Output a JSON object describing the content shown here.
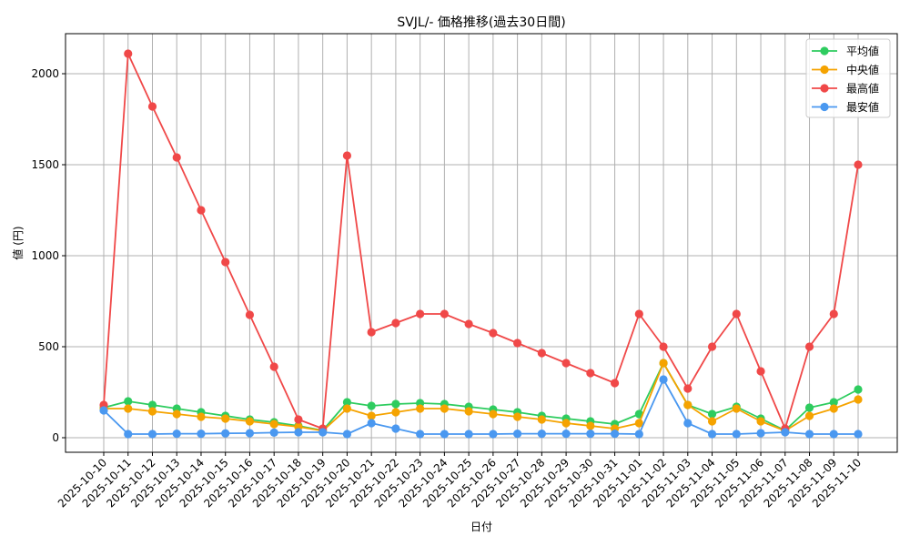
{
  "chart_data": {
    "type": "line",
    "title": "SVJL/- 価格推移(過去30日間)",
    "xlabel": "日付",
    "ylabel": "値 (円)",
    "categories": [
      "2025-10-10",
      "2025-10-11",
      "2025-10-12",
      "2025-10-13",
      "2025-10-14",
      "2025-10-15",
      "2025-10-16",
      "2025-10-17",
      "2025-10-18",
      "2025-10-19",
      "2025-10-20",
      "2025-10-21",
      "2025-10-22",
      "2025-10-23",
      "2025-10-24",
      "2025-10-25",
      "2025-10-26",
      "2025-10-27",
      "2025-10-28",
      "2025-10-29",
      "2025-10-30",
      "2025-10-31",
      "2025-11-01",
      "2025-11-02",
      "2025-11-03",
      "2025-11-04",
      "2025-11-05",
      "2025-11-06",
      "2025-11-07",
      "2025-11-08",
      "2025-11-09",
      "2025-11-10"
    ],
    "ylim": [
      -80,
      2220
    ],
    "yticks": [
      0,
      500,
      1000,
      1500,
      2000
    ],
    "grid": true,
    "legend_position": "top-right",
    "series": [
      {
        "name": "平均値",
        "color": "#2ecc5f",
        "values": [
          165,
          200,
          180,
          160,
          140,
          120,
          100,
          85,
          65,
          40,
          195,
          175,
          185,
          190,
          185,
          170,
          155,
          140,
          120,
          105,
          90,
          75,
          130,
          410,
          180,
          130,
          170,
          105,
          40,
          165,
          195,
          265
        ]
      },
      {
        "name": "中央値",
        "color": "#f5a300",
        "values": [
          160,
          160,
          145,
          130,
          115,
          105,
          90,
          75,
          60,
          38,
          160,
          120,
          140,
          160,
          160,
          145,
          130,
          115,
          100,
          80,
          65,
          50,
          80,
          410,
          180,
          90,
          160,
          90,
          38,
          120,
          160,
          210
        ]
      },
      {
        "name": "最高値",
        "color": "#f04848",
        "values": [
          180,
          2110,
          1820,
          1540,
          1250,
          965,
          675,
          390,
          100,
          50,
          1550,
          580,
          630,
          680,
          680,
          625,
          575,
          520,
          465,
          410,
          355,
          300,
          680,
          500,
          270,
          500,
          680,
          365,
          50,
          500,
          680,
          1500
        ]
      },
      {
        "name": "最安値",
        "color": "#4a98f0",
        "values": [
          150,
          20,
          20,
          22,
          22,
          24,
          25,
          28,
          30,
          30,
          20,
          80,
          50,
          20,
          20,
          20,
          20,
          22,
          22,
          22,
          22,
          22,
          20,
          320,
          80,
          20,
          20,
          25,
          30,
          20,
          20,
          20
        ]
      }
    ]
  }
}
